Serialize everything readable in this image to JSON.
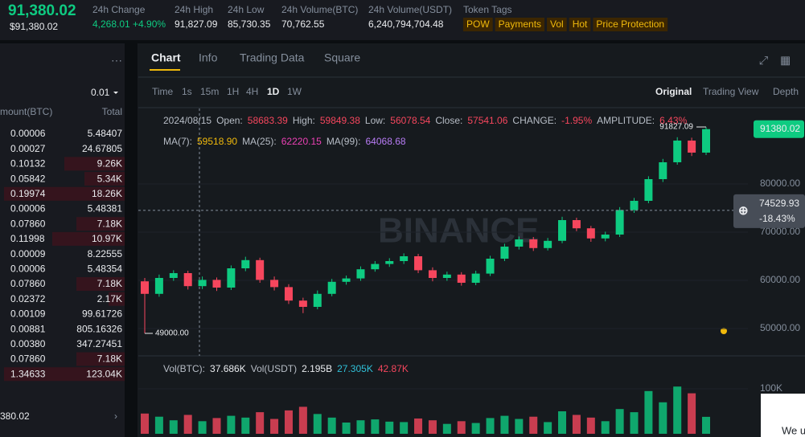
{
  "header": {
    "price": "91,380.02",
    "price_sub": "$91,380.02",
    "stats": [
      {
        "label": "24h Change",
        "value": "4,268.01 +4.90%"
      },
      {
        "label": "24h High",
        "value": "91,827.09"
      },
      {
        "label": "24h Low",
        "value": "85,730.35"
      },
      {
        "label": "24h Volume(BTC)",
        "value": "70,762.55"
      },
      {
        "label": "24h Volume(USDT)",
        "value": "6,240,794,704.48"
      }
    ],
    "token_tags_label": "Token Tags",
    "tags": [
      "POW",
      "Payments",
      "Vol",
      "Hot",
      "Price Protection"
    ]
  },
  "order_book": {
    "step": "0.01",
    "columns": [
      "mount(BTC)",
      "Total"
    ],
    "rows": [
      [
        "0.00006",
        "5.48407"
      ],
      [
        "0.00027",
        "24.67805"
      ],
      [
        "0.10132",
        "9.26K"
      ],
      [
        "0.05842",
        "5.34K"
      ],
      [
        "0.19974",
        "18.26K"
      ],
      [
        "0.00006",
        "5.48381"
      ],
      [
        "0.07860",
        "7.18K"
      ],
      [
        "0.11998",
        "10.97K"
      ],
      [
        "0.00009",
        "8.22555"
      ],
      [
        "0.00006",
        "5.48354"
      ],
      [
        "0.07860",
        "7.18K"
      ],
      [
        "0.02372",
        "2.17K"
      ],
      [
        "0.00109",
        "99.61726"
      ],
      [
        "0.00881",
        "805.16326"
      ],
      [
        "0.00380",
        "347.27451"
      ],
      [
        "0.07860",
        "7.18K"
      ],
      [
        "1.34633",
        "123.04K"
      ]
    ],
    "footer": "380.02"
  },
  "tabs": [
    "Chart",
    "Info",
    "Trading Data",
    "Square"
  ],
  "toolbar": {
    "time_label": "Time",
    "intervals": [
      "1s",
      "15m",
      "1H",
      "4H",
      "1D",
      "1W"
    ],
    "views": [
      "Original",
      "Trading View",
      "Depth"
    ]
  },
  "ohlc_info": {
    "date": "2024/08/15",
    "fields": [
      {
        "label": "Open:",
        "value": "58683.39"
      },
      {
        "label": "High:",
        "value": "59849.38"
      },
      {
        "label": "Low:",
        "value": "56078.54"
      },
      {
        "label": "Close:",
        "value": "57541.06"
      },
      {
        "label": "CHANGE:",
        "value": "-1.95%"
      },
      {
        "label": "AMPLITUDE:",
        "value": "6.43%"
      }
    ]
  },
  "ma_info": [
    {
      "label": "MA(7):",
      "value": "59518.90",
      "color": "#f0b90b"
    },
    {
      "label": "MA(25):",
      "value": "62220.15",
      "color": "#eb40b5"
    },
    {
      "label": "MA(99):",
      "value": "64068.68",
      "color": "#b87cf5"
    }
  ],
  "vol_info": [
    {
      "label": "Vol(BTC):",
      "value": "37.686K",
      "color": "#eaecef"
    },
    {
      "label": "Vol(USDT)",
      "value": "2.195B",
      "color": "#eaecef"
    },
    {
      "label": "",
      "value": "27.305K",
      "color": "#30c0d8"
    },
    {
      "label": "",
      "value": "42.87K",
      "color": "#f6465d"
    }
  ],
  "popup_text": "We u",
  "chart_data": {
    "type": "candlestick",
    "watermark": "BINANCE",
    "up_color": "#0ecb81",
    "down_color": "#f6465d",
    "open": [
      59800,
      57200,
      60500,
      61500,
      58800,
      60100,
      58500,
      62500,
      64200,
      60100,
      58600,
      55800,
      54500,
      57200,
      59700,
      60400,
      62300,
      63400,
      64000,
      65000,
      62100,
      60500,
      61200,
      59500,
      61400,
      64500,
      67000,
      68500,
      66700,
      68200,
      72500,
      70800,
      68700,
      69500,
      74600,
      76500,
      81000,
      84500,
      89000,
      86500
    ],
    "high": [
      60500,
      61200,
      62100,
      62000,
      60800,
      60600,
      63100,
      64900,
      64700,
      60800,
      59200,
      56400,
      57900,
      60300,
      61000,
      62900,
      64000,
      64600,
      65600,
      65500,
      62700,
      61800,
      61700,
      62000,
      65100,
      67600,
      69100,
      69000,
      68800,
      73200,
      73000,
      71300,
      70100,
      75200,
      77100,
      81600,
      85200,
      89700,
      89600,
      91827.09
    ],
    "low": [
      49000,
      56600,
      59900,
      58100,
      58200,
      57800,
      58000,
      61900,
      59500,
      57900,
      55100,
      53200,
      54000,
      56700,
      59100,
      59900,
      61800,
      62800,
      63400,
      61500,
      59800,
      59900,
      58900,
      59000,
      60900,
      64000,
      66400,
      66100,
      66200,
      67700,
      70200,
      68000,
      68100,
      69000,
      74000,
      76000,
      80400,
      84000,
      85800,
      86000
    ],
    "close": [
      57200,
      60500,
      61500,
      58800,
      60100,
      58500,
      62500,
      64200,
      60100,
      58600,
      55800,
      54500,
      57200,
      59700,
      60400,
      62300,
      63400,
      64000,
      65000,
      62100,
      60500,
      61200,
      59500,
      61400,
      64500,
      67000,
      68500,
      66700,
      68200,
      72500,
      70800,
      68700,
      69500,
      74600,
      76500,
      81000,
      84500,
      89000,
      86500,
      91380
    ],
    "ylim": [
      44833,
      95667
    ],
    "yticks": [
      {
        "value": 50000,
        "label": "50000.00"
      },
      {
        "value": 60000,
        "label": "60000.00"
      },
      {
        "value": 70000,
        "label": "70000.00"
      },
      {
        "value": 80000,
        "label": "80000.00"
      }
    ],
    "last_price": {
      "value": 91380.02,
      "label": "91380.02"
    },
    "crosshair": {
      "value": 74529.93,
      "label": "74529.93",
      "change": "-18.43%"
    },
    "max_label": {
      "value": 91827.09,
      "label": "91827.09"
    },
    "min_label": {
      "value": 49000,
      "label": "49000.00"
    },
    "volume": {
      "values": [
        45000,
        38000,
        30000,
        42000,
        28000,
        35000,
        40000,
        36000,
        48000,
        33000,
        52000,
        60000,
        44000,
        36000,
        25000,
        30000,
        32000,
        27000,
        26000,
        34000,
        30000,
        22000,
        28000,
        24000,
        35000,
        40000,
        33000,
        38000,
        26000,
        50000,
        42000,
        36000,
        28000,
        55000,
        48000,
        95000,
        70000,
        105000,
        90000,
        37686
      ],
      "ylim": [
        0,
        125000
      ],
      "yticks": [
        {
          "value": 100000,
          "label": "100K"
        }
      ]
    }
  }
}
